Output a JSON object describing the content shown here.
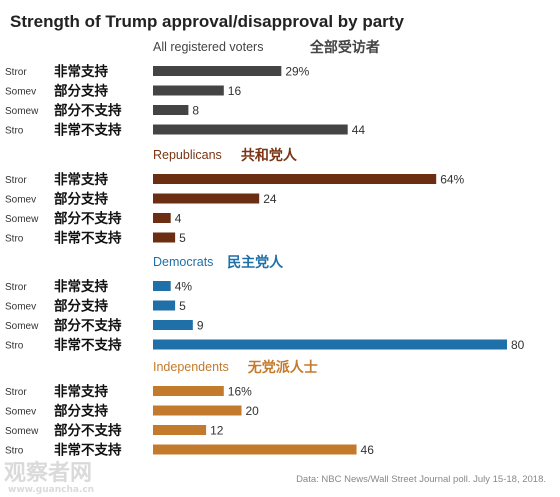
{
  "chart_data": {
    "type": "bar",
    "orientation": "horizontal",
    "title": "Strength of Trump approval/disapproval by party",
    "source": "Data: NBC News/Wall Street Journal poll. July 15-18, 2018.",
    "watermark": "观察者网",
    "watermark_sub": "www.guancha.cn",
    "categories_overlay": [
      "非常支持",
      "部分支持",
      "部分不支持",
      "非常不支持"
    ],
    "categories_truncated": [
      "Stror",
      "Somev",
      "Somew",
      "Stro"
    ],
    "groups": [
      {
        "name": "All registered voters",
        "name_cn": "全部受访者",
        "color": "#444444",
        "label_color": "#444444",
        "values": [
          29,
          16,
          8,
          44
        ],
        "value_labels": [
          "29%",
          "16",
          "8",
          "44"
        ]
      },
      {
        "name": "Republicans",
        "name_cn": "共和党人",
        "color": "#6b2e12",
        "label_color": "#7a3414",
        "values": [
          64,
          24,
          4,
          5
        ],
        "value_labels": [
          "64%",
          "24",
          "4",
          "5"
        ]
      },
      {
        "name": "Democrats",
        "name_cn": "民主党人",
        "color": "#1f6fa8",
        "label_color": "#1f6fa8",
        "values": [
          4,
          5,
          9,
          80
        ],
        "value_labels": [
          "4%",
          "5",
          "9",
          "80"
        ]
      },
      {
        "name": "Independents",
        "name_cn": "无党派人士",
        "color": "#c47a2c",
        "label_color": "#c47a2c",
        "values": [
          16,
          20,
          12,
          46
        ],
        "value_labels": [
          "16%",
          "20",
          "12",
          "46"
        ]
      }
    ],
    "xlim": [
      0,
      80
    ],
    "grid": false,
    "legend": "none"
  }
}
